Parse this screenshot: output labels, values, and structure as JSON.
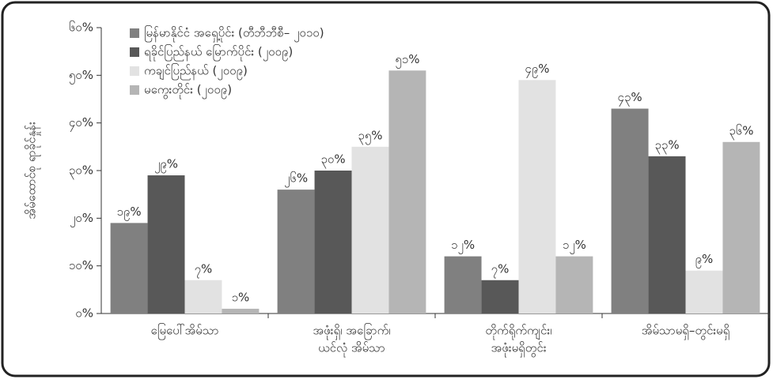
{
  "chart_data": {
    "type": "bar",
    "y_label": "အိမ်ထောင်စု ရာခိုင်နှုန်း",
    "categories": [
      [
        "မြေပေါ်အိမ်သာ"
      ],
      [
        "အဖုံးရှိ၊ အခြောက်၊",
        "ယင်လုံ အိမ်သာ"
      ],
      [
        "တိုက်ရိုက်ကျင်း၊",
        "အဖုံးမရှိတွင်း"
      ],
      [
        "အိမ်သာမရှိ–တွင်းမရှိ"
      ]
    ],
    "series": [
      {
        "name": "မြန်မာနိုင်ငံ အရှေ့ပိုင်း (တီဘီဘီစီ– ၂၀၁၀)",
        "color": "#808080",
        "values": [
          19,
          26,
          12,
          43
        ],
        "value_labels": [
          "၁၉%",
          "၂၆%",
          "၁၂%",
          "၄၃%"
        ]
      },
      {
        "name": "ရခိုင်ပြည်နယ် မြောက်ပိုင်း (၂၀၀၉)",
        "color": "#585858",
        "values": [
          29,
          30,
          7,
          33
        ],
        "value_labels": [
          "၂၉%",
          "၃၀%",
          "၇%",
          "၃၃%"
        ]
      },
      {
        "name": "ကချင်ပြည်နယ် (၂၀၀၉)",
        "color": "#e2e2e2",
        "values": [
          7,
          35,
          49,
          9
        ],
        "value_labels": [
          "၇%",
          "၃၅%",
          "၄၉%",
          "၉%"
        ]
      },
      {
        "name": "မကွေးတိုင်း (၂၀၀၉)",
        "color": "#b5b5b5",
        "values": [
          1,
          51,
          12,
          36
        ],
        "value_labels": [
          "၁%",
          "၅၁%",
          "၁၂%",
          "၃၆%"
        ]
      }
    ],
    "ylim": [
      0,
      60
    ],
    "yticks": [
      {
        "value": 0,
        "label": "၀%"
      },
      {
        "value": 10,
        "label": "၁၀%"
      },
      {
        "value": 20,
        "label": "၂၀%"
      },
      {
        "value": 30,
        "label": "၃၀%"
      },
      {
        "value": 40,
        "label": "၄၀%"
      },
      {
        "value": 50,
        "label": "၅၀%"
      },
      {
        "value": 60,
        "label": "၆၀%"
      }
    ]
  }
}
